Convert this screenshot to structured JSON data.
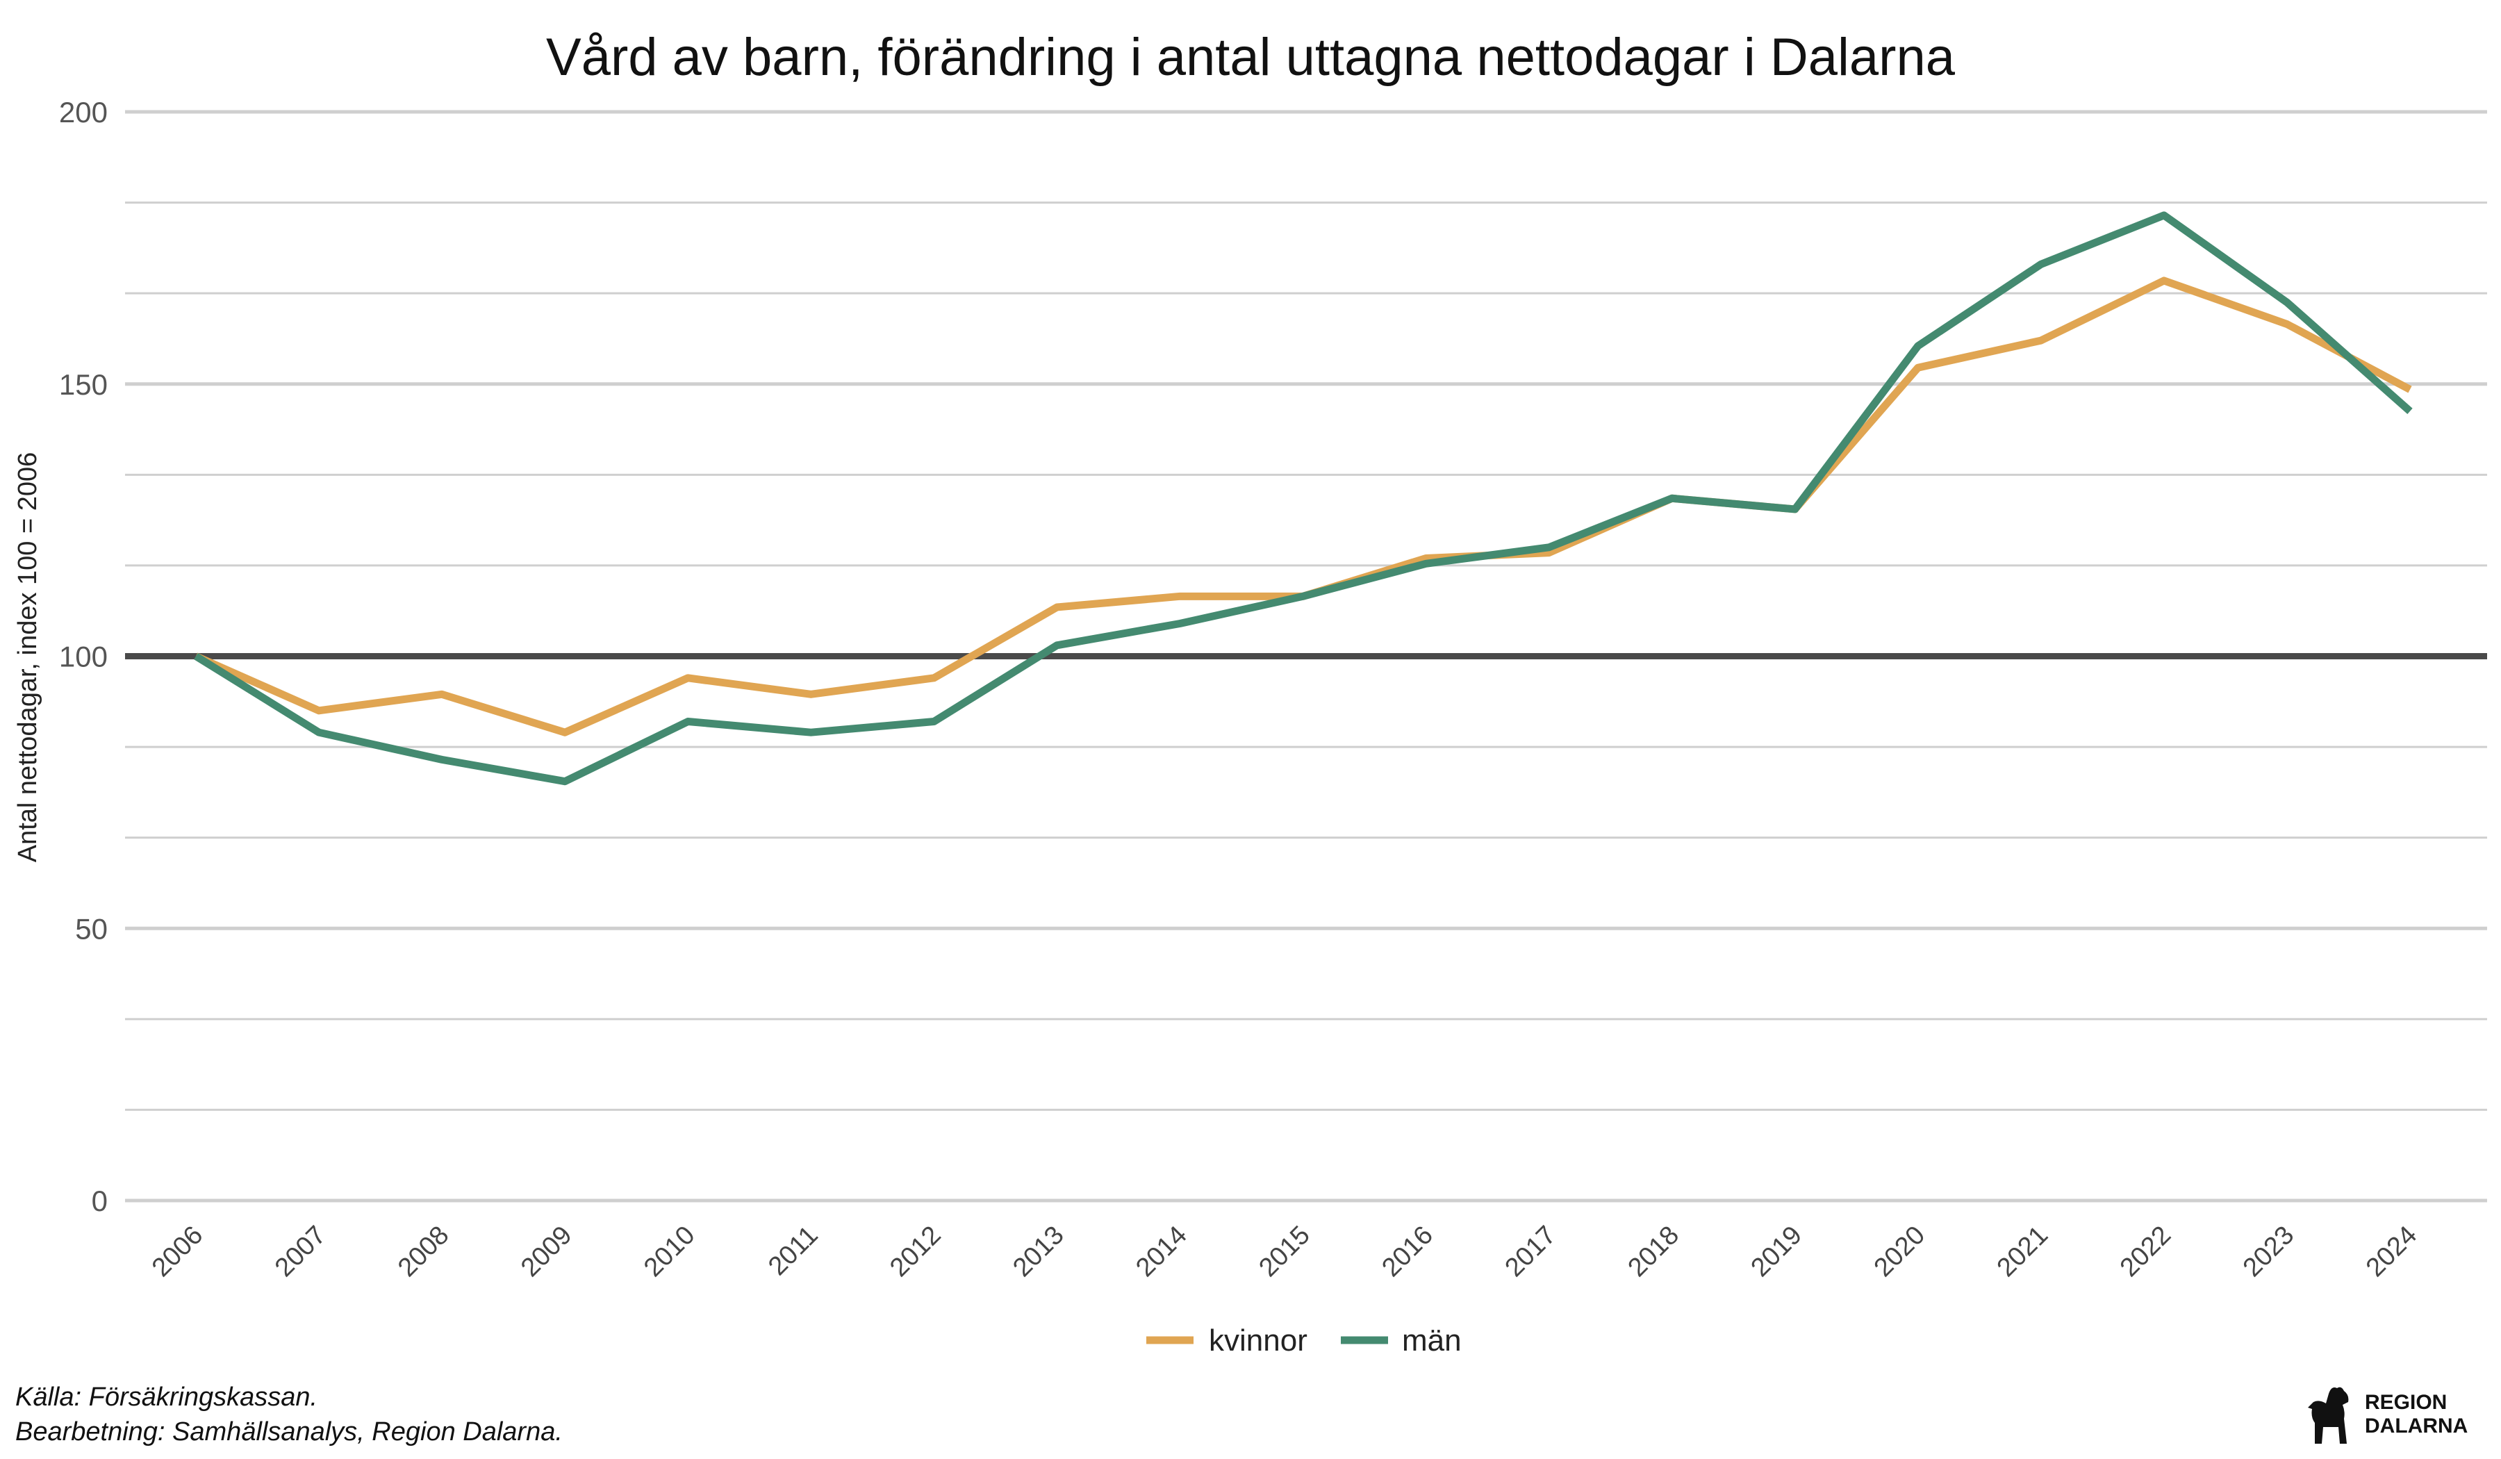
{
  "colors": {
    "kvinnor": "#E0A552",
    "man": "#448A70",
    "grid": "#cfcfcf",
    "reference": "#4a4a4a"
  },
  "source": {
    "line1": "Källa: Försäkringskassan.",
    "line2": "Bearbetning: Samhällsanalys, Region Dalarna."
  },
  "logo": {
    "line1": "REGION",
    "line2": "DALARNA",
    "icon": "dala-horse-icon"
  },
  "chart_data": {
    "type": "line",
    "title": "Vård av barn, förändring i antal uttagna nettodagar i Dalarna",
    "xlabel": "",
    "ylabel": "Antal nettodagar, index 100 = 2006",
    "ylim": [
      0,
      200
    ],
    "yticks": [
      0,
      50,
      100,
      150,
      200
    ],
    "reference_line": 100,
    "grid": true,
    "legend_position": "bottom",
    "categories": [
      "2006",
      "2007",
      "2008",
      "2009",
      "2010",
      "2011",
      "2012",
      "2013",
      "2014",
      "2015",
      "2016",
      "2017",
      "2018",
      "2019",
      "2020",
      "2021",
      "2022",
      "2023",
      "2024"
    ],
    "series": [
      {
        "name": "kvinnor",
        "values": [
          100,
          90,
          93,
          86,
          96,
          93,
          96,
          109,
          111,
          111,
          118,
          119,
          129,
          127,
          153,
          158,
          169,
          161,
          149
        ]
      },
      {
        "name": "män",
        "values": [
          100,
          86,
          81,
          77,
          88,
          86,
          88,
          102,
          106,
          111,
          117,
          120,
          129,
          127,
          157,
          172,
          181,
          165,
          145
        ]
      }
    ]
  }
}
